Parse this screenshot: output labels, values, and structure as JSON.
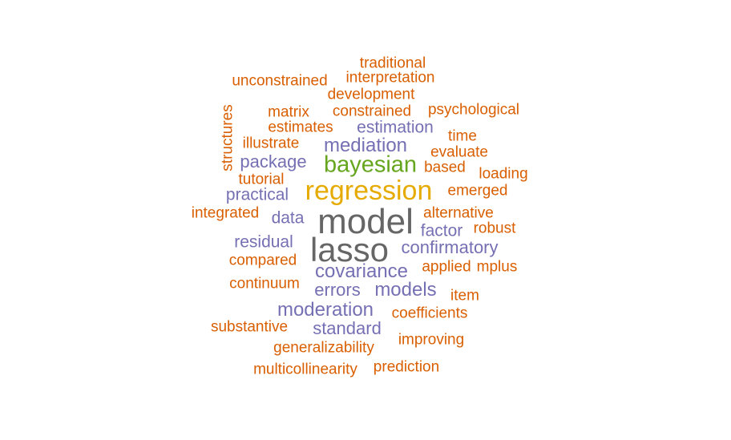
{
  "palette": {
    "orange": "#d95f02",
    "purple": "#7570b3",
    "green": "#66a61e",
    "gold": "#e6ab02",
    "gray": "#666666"
  },
  "words": [
    {
      "text": "traditional",
      "color": "orange"
    },
    {
      "text": "unconstrained",
      "color": "orange"
    },
    {
      "text": "interpretation",
      "color": "orange"
    },
    {
      "text": "development",
      "color": "orange"
    },
    {
      "text": "matrix",
      "color": "orange"
    },
    {
      "text": "constrained",
      "color": "orange"
    },
    {
      "text": "psychological",
      "color": "orange"
    },
    {
      "text": "structures",
      "color": "orange"
    },
    {
      "text": "estimates",
      "color": "orange"
    },
    {
      "text": "estimation",
      "color": "purple"
    },
    {
      "text": "time",
      "color": "orange"
    },
    {
      "text": "illustrate",
      "color": "orange"
    },
    {
      "text": "mediation",
      "color": "purple"
    },
    {
      "text": "evaluate",
      "color": "orange"
    },
    {
      "text": "package",
      "color": "purple"
    },
    {
      "text": "bayesian",
      "color": "green"
    },
    {
      "text": "based",
      "color": "orange"
    },
    {
      "text": "loading",
      "color": "orange"
    },
    {
      "text": "tutorial",
      "color": "orange"
    },
    {
      "text": "practical",
      "color": "purple"
    },
    {
      "text": "regression",
      "color": "gold"
    },
    {
      "text": "emerged",
      "color": "orange"
    },
    {
      "text": "integrated",
      "color": "orange"
    },
    {
      "text": "data",
      "color": "purple"
    },
    {
      "text": "model",
      "color": "gray"
    },
    {
      "text": "alternative",
      "color": "orange"
    },
    {
      "text": "factor",
      "color": "purple"
    },
    {
      "text": "robust",
      "color": "orange"
    },
    {
      "text": "residual",
      "color": "purple"
    },
    {
      "text": "lasso",
      "color": "gray"
    },
    {
      "text": "confirmatory",
      "color": "purple"
    },
    {
      "text": "compared",
      "color": "orange"
    },
    {
      "text": "applied",
      "color": "orange"
    },
    {
      "text": "mplus",
      "color": "orange"
    },
    {
      "text": "covariance",
      "color": "purple"
    },
    {
      "text": "continuum",
      "color": "orange"
    },
    {
      "text": "errors",
      "color": "purple"
    },
    {
      "text": "models",
      "color": "purple"
    },
    {
      "text": "item",
      "color": "orange"
    },
    {
      "text": "moderation",
      "color": "purple"
    },
    {
      "text": "coefficients",
      "color": "orange"
    },
    {
      "text": "substantive",
      "color": "orange"
    },
    {
      "text": "standard",
      "color": "purple"
    },
    {
      "text": "improving",
      "color": "orange"
    },
    {
      "text": "generalizability",
      "color": "orange"
    },
    {
      "text": "multicollinearity",
      "color": "orange"
    },
    {
      "text": "prediction",
      "color": "orange"
    }
  ]
}
